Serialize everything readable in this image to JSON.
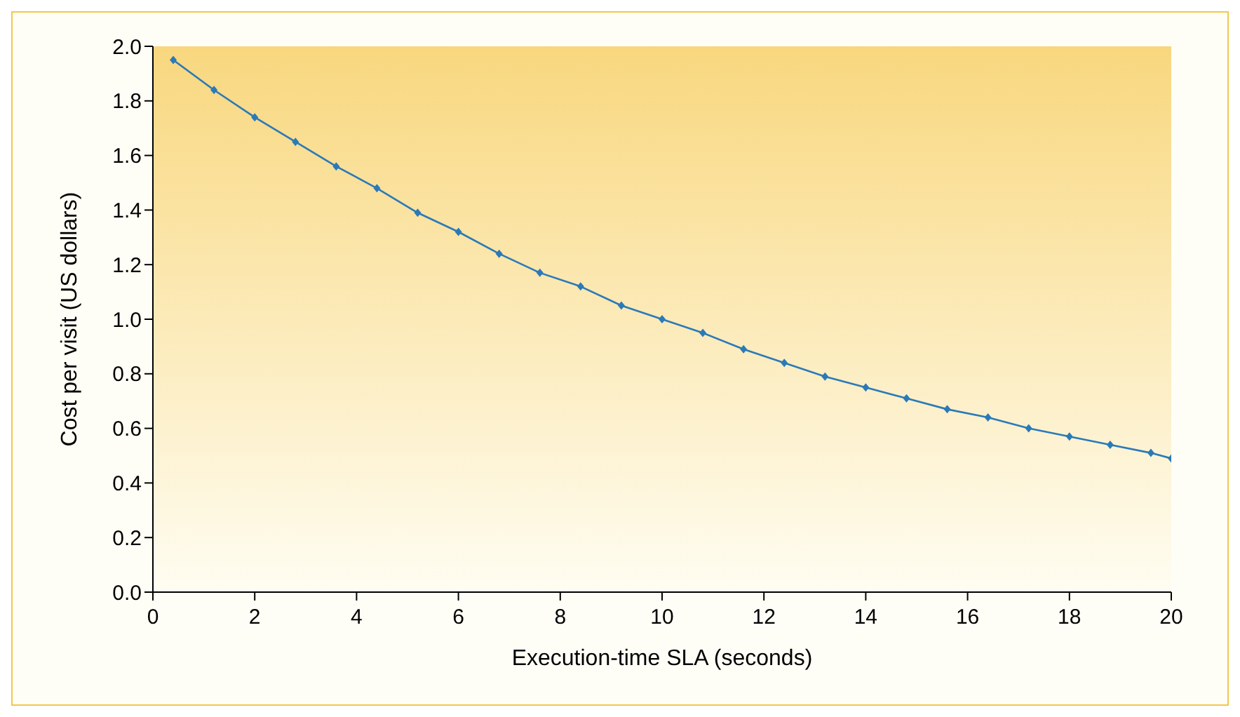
{
  "chart_data": {
    "type": "line",
    "xlabel": "Execution-time SLA (seconds)",
    "ylabel": "Cost per visit (US dollars)",
    "x": [
      0.4,
      1.2,
      2.0,
      2.8,
      3.6,
      4.4,
      5.2,
      6.0,
      6.8,
      7.6,
      8.4,
      9.2,
      10.0,
      10.8,
      11.6,
      12.4,
      13.2,
      14.0,
      14.8,
      15.6,
      16.4,
      17.2,
      18.0,
      18.8,
      19.6,
      20.0
    ],
    "series": [
      {
        "color": "#2a7ab8",
        "values": [
          1.95,
          1.84,
          1.74,
          1.65,
          1.56,
          1.48,
          1.39,
          1.32,
          1.24,
          1.17,
          1.12,
          1.05,
          1.0,
          0.95,
          0.89,
          0.84,
          0.79,
          0.75,
          0.71,
          0.67,
          0.64,
          0.6,
          0.57,
          0.54,
          0.51,
          0.49
        ]
      }
    ],
    "xlim": [
      0,
      20
    ],
    "xticks": [
      0,
      2,
      4,
      6,
      8,
      10,
      12,
      14,
      16,
      18,
      20
    ],
    "ylim": [
      0,
      2
    ],
    "yticks": [
      {
        "value": 0,
        "label": "0.0"
      },
      {
        "value": 0.2,
        "label": "0.2"
      },
      {
        "value": 0.4,
        "label": "0.4"
      },
      {
        "value": 0.6,
        "label": "0.6"
      },
      {
        "value": 0.8,
        "label": "0.8"
      },
      {
        "value": 1,
        "label": "1.0"
      },
      {
        "value": 1.2,
        "label": "1.2"
      },
      {
        "value": 1.4,
        "label": "1.4"
      },
      {
        "value": 1.6,
        "label": "1.6"
      },
      {
        "value": 1.8,
        "label": "1.8"
      },
      {
        "value": 2,
        "label": "2.0"
      }
    ],
    "marker": "diamond",
    "line_style": "solid",
    "grid": false,
    "legend": false
  }
}
